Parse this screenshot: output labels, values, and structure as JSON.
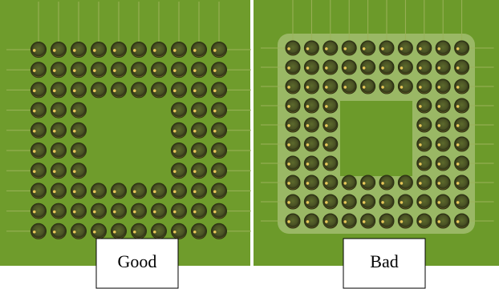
{
  "labels": {
    "left": "Good",
    "right": "Bad"
  }
}
